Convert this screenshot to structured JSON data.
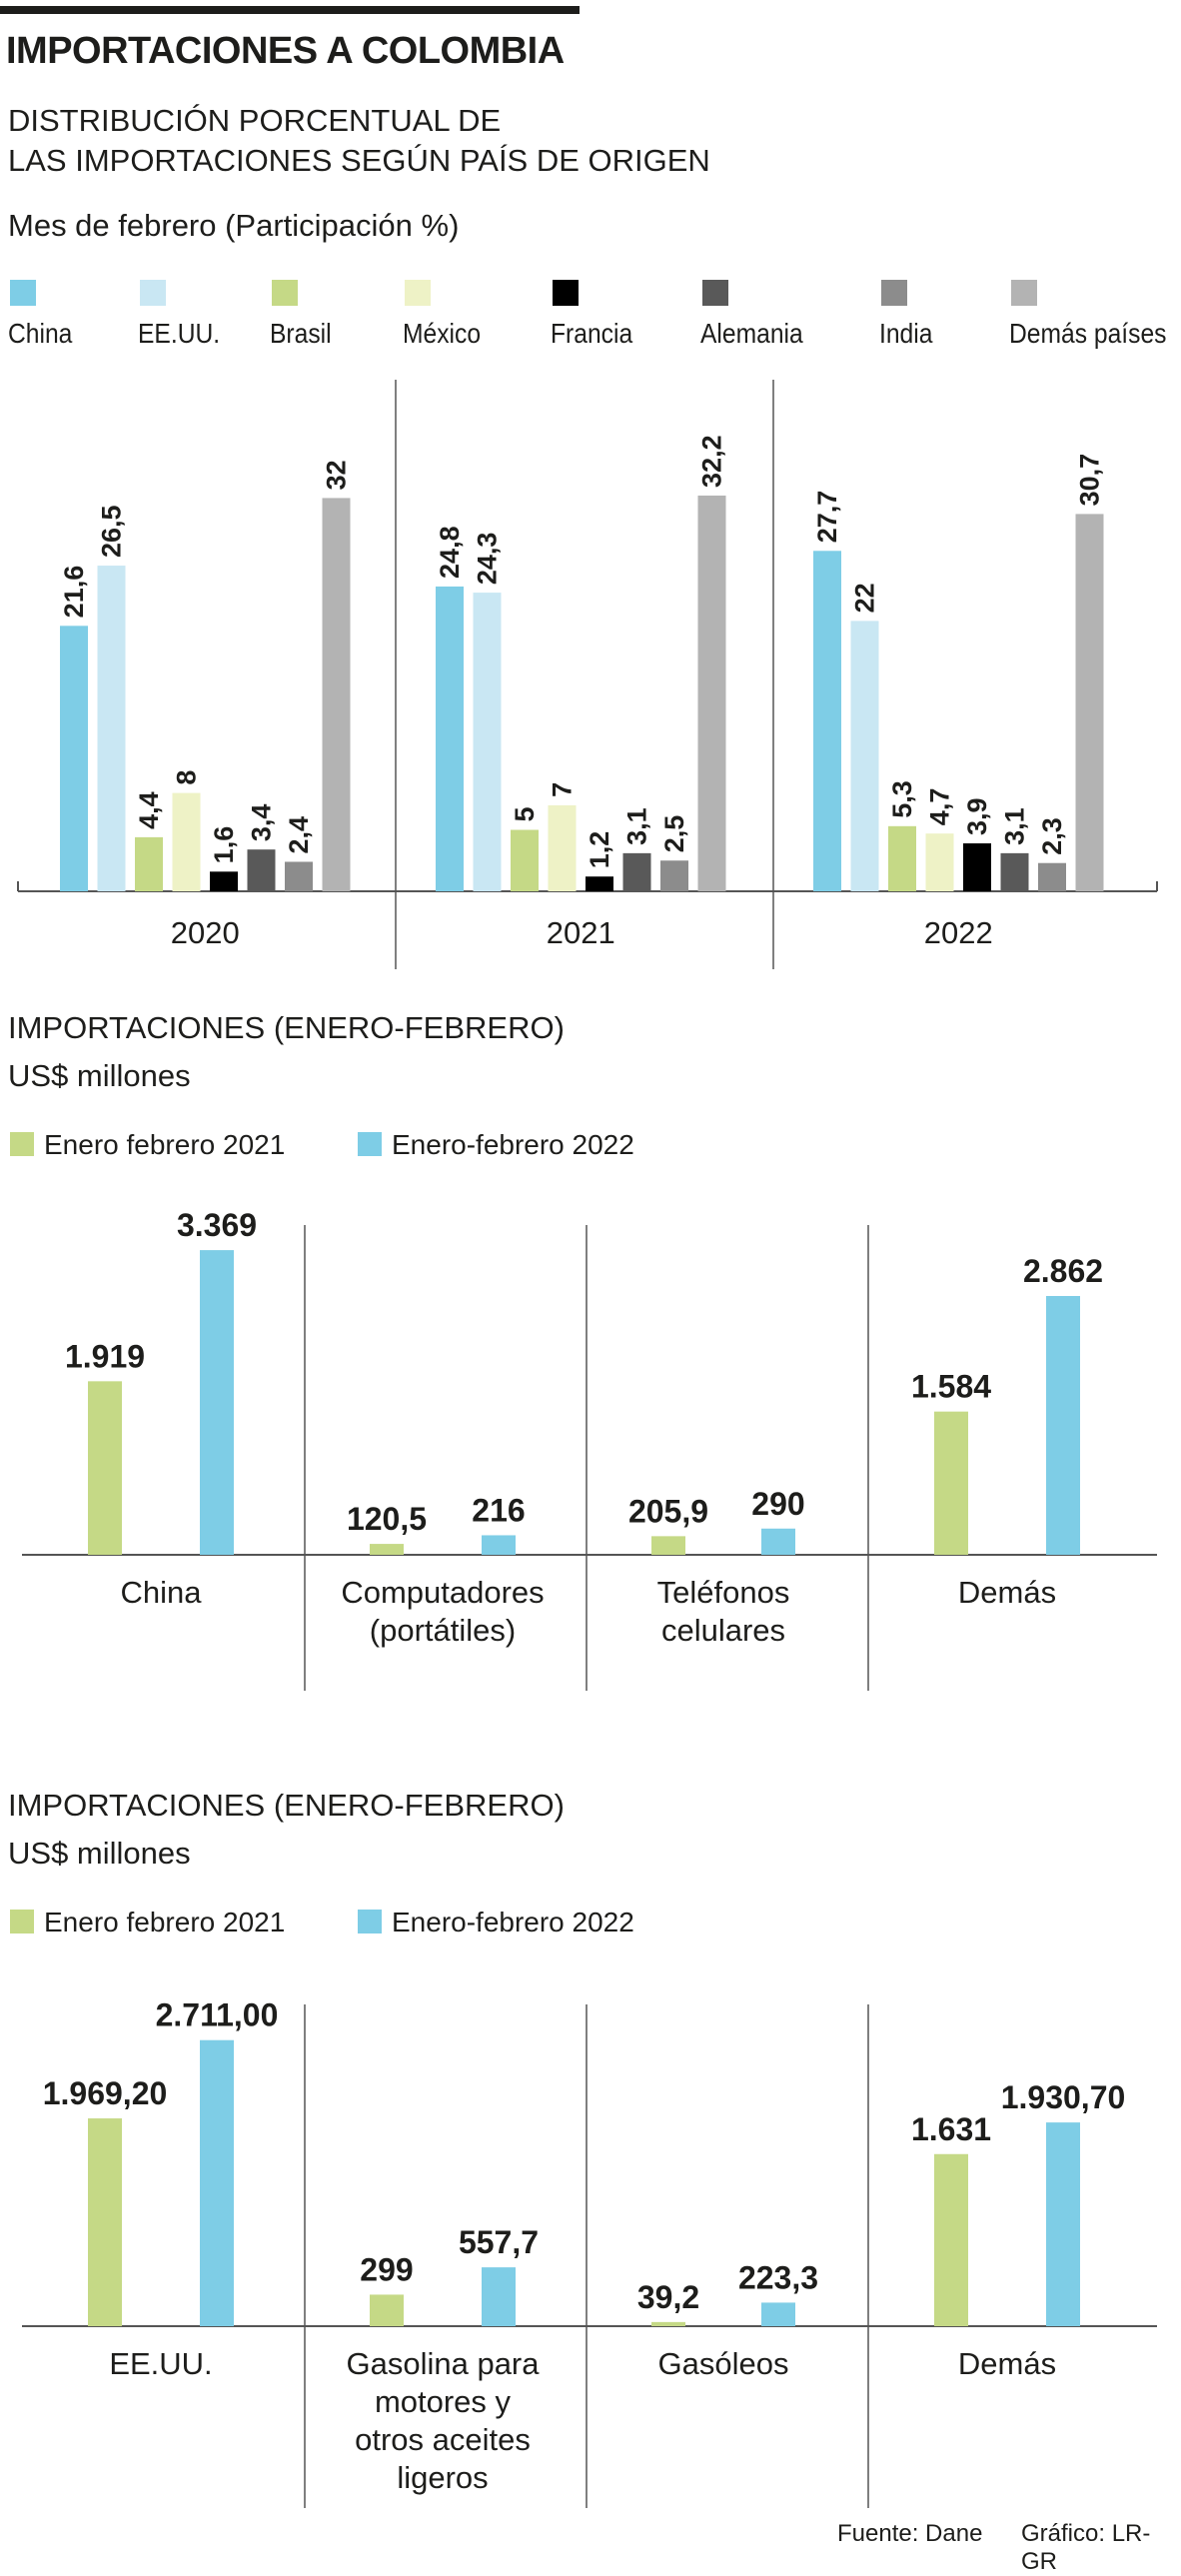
{
  "header": {
    "title": "IMPORTACIONES A COLOMBIA",
    "subtitle_line1": "DISTRIBUCIÓN PORCENTUAL DE",
    "subtitle_line2": "LAS IMPORTACIONES SEGÚN PAÍS DE ORIGEN",
    "note": "Mes de febrero (Participación %)"
  },
  "colors": {
    "china": "#7ecde6",
    "eeuu": "#c9e7f3",
    "brasil": "#c5d986",
    "mexico": "#eef2c6",
    "francia": "#000000",
    "alemania": "#595959",
    "india": "#8c8c8c",
    "demas": "#b3b3b3",
    "green": "#c5d986",
    "blue": "#7ecde6"
  },
  "chart_data": [
    {
      "type": "bar",
      "title": "Mes de febrero (Participación %)",
      "categories": [
        "2020",
        "2021",
        "2022"
      ],
      "series": [
        {
          "name": "China",
          "values": [
            21.6,
            24.8,
            27.7
          ],
          "labels": [
            "21,6",
            "24,8",
            "27,7"
          ]
        },
        {
          "name": "EE.UU.",
          "values": [
            26.5,
            24.3,
            22
          ],
          "labels": [
            "26,5",
            "24,3",
            "22"
          ]
        },
        {
          "name": "Brasil",
          "values": [
            4.4,
            5,
            5.3
          ],
          "labels": [
            "4,4",
            "5",
            "5,3"
          ]
        },
        {
          "name": "México",
          "values": [
            8,
            7,
            4.7
          ],
          "labels": [
            "8",
            "7",
            "4,7"
          ]
        },
        {
          "name": "Francia",
          "values": [
            1.6,
            1.2,
            3.9
          ],
          "labels": [
            "1,6",
            "1,2",
            "3,9"
          ]
        },
        {
          "name": "Alemania",
          "values": [
            3.4,
            3.1,
            3.1
          ],
          "labels": [
            "3,4",
            "3,1",
            "3,1"
          ]
        },
        {
          "name": "India",
          "values": [
            2.4,
            2.5,
            2.3
          ],
          "labels": [
            "2,4",
            "2,5",
            "2,3"
          ]
        },
        {
          "name": "Demás países",
          "values": [
            32,
            32.2,
            30.7
          ],
          "labels": [
            "32",
            "32,2",
            "30,7"
          ]
        }
      ],
      "legend_position": "top",
      "grid": false,
      "ylim": [
        0,
        40
      ]
    },
    {
      "type": "bar",
      "title": "IMPORTACIONES (ENERO-FEBRERO)",
      "subtitle": "US$ millones",
      "categories": [
        "China",
        "Computadores (portátiles)",
        "Teléfonos celulares",
        "Demás"
      ],
      "category_lines": [
        [
          "China"
        ],
        [
          "Computadores",
          "(portátiles)"
        ],
        [
          "Teléfonos",
          "celulares"
        ],
        [
          "Demás"
        ]
      ],
      "series": [
        {
          "name": "Enero febrero 2021",
          "values": [
            1919,
            120.5,
            205.9,
            1584
          ],
          "labels": [
            "1.919",
            "120,5",
            "205,9",
            "1.584"
          ]
        },
        {
          "name": "Enero-febrero 2022",
          "values": [
            3369,
            216,
            290,
            2862
          ],
          "labels": [
            "3.369",
            "216",
            "290",
            "2.862"
          ]
        }
      ],
      "legend_position": "top-left",
      "grid": false,
      "ylim": [
        0,
        4000
      ]
    },
    {
      "type": "bar",
      "title": "IMPORTACIONES (ENERO-FEBRERO)",
      "subtitle": "US$ millones",
      "categories": [
        "EE.UU.",
        "Gasolina para motores y otros aceites ligeros",
        "Gasóleos",
        "Demás"
      ],
      "category_lines": [
        [
          "EE.UU."
        ],
        [
          "Gasolina para",
          "motores y",
          "otros aceites",
          "ligeros"
        ],
        [
          "Gasóleos"
        ],
        [
          "Demás"
        ]
      ],
      "series": [
        {
          "name": "Enero febrero 2021",
          "values": [
            1969.2,
            299,
            39.2,
            1631
          ],
          "labels": [
            "1.969,20",
            "299",
            "39,2",
            "1.631"
          ]
        },
        {
          "name": "Enero-febrero 2022",
          "values": [
            2711,
            557.7,
            223.3,
            1930.7
          ],
          "labels": [
            "2.711,00",
            "557,7",
            "223,3",
            "1.930,70"
          ]
        }
      ],
      "legend_position": "top-left",
      "grid": false,
      "ylim": [
        0,
        3200
      ]
    }
  ],
  "section2": {
    "title": "IMPORTACIONES (ENERO-FEBRERO)",
    "unit": "US$ millones"
  },
  "section3": {
    "title": "IMPORTACIONES (ENERO-FEBRERO)",
    "unit": "US$ millones"
  },
  "legend2": {
    "a": "Enero febrero 2021",
    "b": "Enero-febrero 2022"
  },
  "footer": {
    "source": "Fuente: Dane",
    "credit": "Gráfico: LR-GR"
  }
}
